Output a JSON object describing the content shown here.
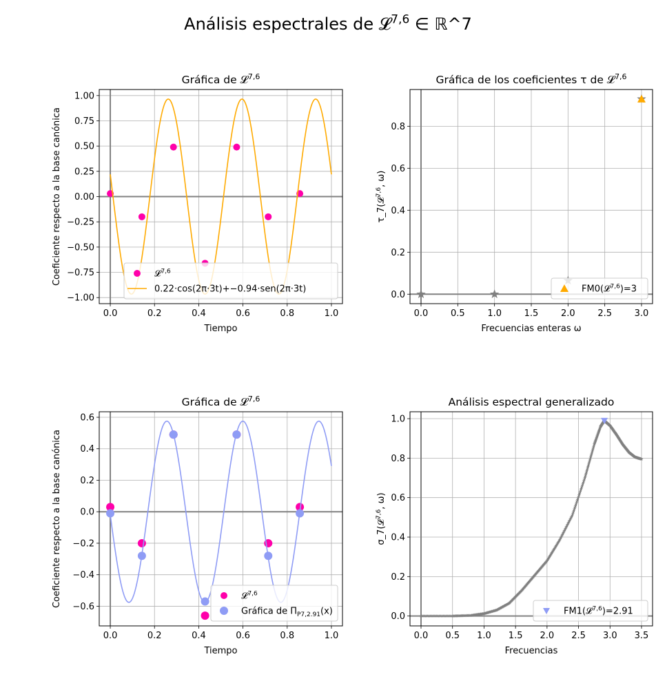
{
  "figure": {
    "suptitle": "Análisis espectrales de 𝓛^{7,6} ∈ ℝ^7"
  },
  "colors": {
    "magenta": "#ff00aa",
    "orange": "#ffaa00",
    "lavender": "#8f9cf5",
    "grey": "#808080",
    "grid": "#b0b0b0"
  },
  "chart_data": [
    {
      "id": "p1",
      "type": "scatter",
      "title": "Gráfica de 𝓛^{7,6}",
      "xlabel": "Tiempo",
      "ylabel": "Coeficiente respecto a la base canónica",
      "xlim": [
        -0.05,
        1.05
      ],
      "ylim": [
        -1.06,
        1.06
      ],
      "xticks": [
        "0.0",
        "0.2",
        "0.4",
        "0.6",
        "0.8",
        "1.0"
      ],
      "yticks": [
        "−1.00",
        "−0.75",
        "−0.50",
        "−0.25",
        "0.00",
        "0.25",
        "0.50",
        "0.75",
        "1.00"
      ],
      "grid": true,
      "legend_position": "lower right",
      "series": [
        {
          "name": "𝓛^{7,6}",
          "kind": "points",
          "color": "#ff00aa",
          "x": [
            0.0,
            0.1429,
            0.2857,
            0.4286,
            0.5714,
            0.7143,
            0.8571
          ],
          "y": [
            0.03,
            -0.2,
            0.49,
            -0.66,
            0.49,
            -0.2,
            0.03
          ]
        },
        {
          "name": "0.22·cos(2π·3t)+−0.94·sen(2π·3t)",
          "kind": "curve",
          "color": "#ffaa00",
          "a": 0.22,
          "b": -0.94,
          "freq": 3,
          "tmin": 0,
          "tmax": 1
        }
      ]
    },
    {
      "id": "p2",
      "type": "scatter",
      "title": "Gráfica de los coeficientes τ de 𝓛^{7,6}",
      "xlabel": "Frecuencias enteras ω",
      "ylabel": "τ_7(𝓛^{7,6}, ω)",
      "xlim": [
        -0.15,
        3.15
      ],
      "ylim": [
        -0.045,
        0.975
      ],
      "xticks": [
        "0.0",
        "0.5",
        "1.0",
        "1.5",
        "2.0",
        "2.5",
        "3.0"
      ],
      "yticks": [
        "0.0",
        "0.2",
        "0.4",
        "0.6",
        "0.8"
      ],
      "grid": true,
      "legend_position": "lower right",
      "series": [
        {
          "name": "",
          "kind": "stars",
          "color": "#808080",
          "x": [
            0,
            1,
            2,
            3
          ],
          "y": [
            0.0,
            0.0,
            0.065,
            0.93
          ]
        },
        {
          "name": "FM0(𝓛^{7,6})=3",
          "kind": "triangle-up",
          "color": "#ffaa00",
          "x": [
            3
          ],
          "y": [
            0.93
          ]
        }
      ]
    },
    {
      "id": "p3",
      "type": "scatter",
      "title": "Gráfica de 𝓛^{7,6}",
      "xlabel": "Tiempo",
      "ylabel": "Coeficiente respecto a la base canónica",
      "xlim": [
        -0.05,
        1.05
      ],
      "ylim": [
        -0.725,
        0.635
      ],
      "xticks": [
        "0.0",
        "0.2",
        "0.4",
        "0.6",
        "0.8",
        "1.0"
      ],
      "yticks": [
        "−0.6",
        "−0.4",
        "−0.2",
        "0.0",
        "0.2",
        "0.4",
        "0.6"
      ],
      "grid": true,
      "legend_position": "lower right",
      "series": [
        {
          "name": "𝓛^{7,6}",
          "kind": "points",
          "color": "#ff00aa",
          "x": [
            0.0,
            0.1429,
            0.2857,
            0.4286,
            0.5714,
            0.7143,
            0.8571
          ],
          "y": [
            0.03,
            -0.2,
            0.49,
            -0.66,
            0.49,
            -0.2,
            0.03
          ]
        },
        {
          "name": "Gráfica de Π_{P_{7,2.91}}(x)",
          "kind": "points-large",
          "color": "#8f9cf5",
          "x": [
            0.0,
            0.1429,
            0.2857,
            0.4286,
            0.5714,
            0.7143,
            0.8571
          ],
          "y": [
            -0.01,
            -0.28,
            0.49,
            -0.57,
            0.49,
            -0.28,
            -0.01
          ]
        },
        {
          "name": "",
          "kind": "curve",
          "color": "#8f9cf5",
          "a": -0.02,
          "b": -0.575,
          "freq": 2.91,
          "tmin": 0,
          "tmax": 1
        }
      ]
    },
    {
      "id": "p4",
      "type": "line",
      "title": "Análisis espectral generalizado",
      "xlabel": "Frecuencias",
      "ylabel": "σ_7(𝓛^{7,6}, ω)",
      "xlim": [
        -0.175,
        3.675
      ],
      "ylim": [
        -0.05,
        1.035
      ],
      "xticks": [
        "0.0",
        "0.5",
        "1.0",
        "1.5",
        "2.0",
        "2.5",
        "3.0",
        "3.5"
      ],
      "yticks": [
        "0.0",
        "0.2",
        "0.4",
        "0.6",
        "0.8",
        "1.0"
      ],
      "grid": true,
      "legend_position": "lower right",
      "series": [
        {
          "name": "",
          "kind": "star-line",
          "color": "#808080",
          "x": [
            0.0,
            0.5,
            0.8,
            1.0,
            1.2,
            1.4,
            1.6,
            1.8,
            2.0,
            2.2,
            2.4,
            2.6,
            2.75,
            2.85,
            2.91,
            3.0,
            3.1,
            3.2,
            3.3,
            3.4,
            3.5
          ],
          "y": [
            0.0,
            0.0,
            0.003,
            0.012,
            0.03,
            0.065,
            0.13,
            0.205,
            0.28,
            0.385,
            0.51,
            0.7,
            0.87,
            0.96,
            0.99,
            0.965,
            0.92,
            0.87,
            0.83,
            0.805,
            0.795
          ]
        },
        {
          "name": "FM1(𝓛^{7,6})=2.91",
          "kind": "triangle-down",
          "color": "#8f9cf5",
          "x": [
            2.91
          ],
          "y": [
            0.99
          ]
        }
      ]
    }
  ]
}
